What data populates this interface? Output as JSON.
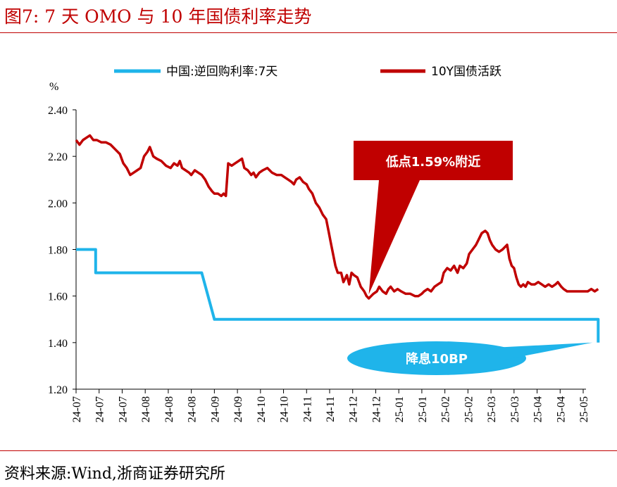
{
  "header": {
    "title": "图7:    7 天 OMO 与 10 年国债利率走势"
  },
  "footer": {
    "source": "资料来源:Wind,浙商证券研究所"
  },
  "colors": {
    "accent": "#c00000",
    "omo_series": "#1fb4ea",
    "bond_series": "#c00000",
    "low_callout": "#c00000",
    "cut_callout": "#1fb4ea"
  },
  "chart_data": {
    "type": "line",
    "y_unit_label": "%",
    "ylim": [
      1.2,
      2.4
    ],
    "y_ticks": [
      "2.40",
      "2.20",
      "2.00",
      "1.80",
      "1.60",
      "1.40",
      "1.20"
    ],
    "x_ticks": [
      "24-07",
      "24-07",
      "24-07",
      "24-08",
      "24-08",
      "24-08",
      "24-09",
      "24-09",
      "24-10",
      "24-10",
      "24-11",
      "24-11",
      "24-12",
      "24-12",
      "25-01",
      "25-01",
      "25-02",
      "25-02",
      "25-03",
      "25-03",
      "25-04",
      "25-04",
      "25-05"
    ],
    "legend_position": "top",
    "grid": false,
    "series": [
      {
        "name": "中国:逆回购利率:7天",
        "color": "#1fb4ea",
        "points": [
          [
            0,
            1.8
          ],
          [
            0.85,
            1.8
          ],
          [
            0.85,
            1.7
          ],
          [
            5.45,
            1.7
          ],
          [
            6.0,
            1.5
          ],
          [
            22.65,
            1.5
          ],
          [
            22.65,
            1.4
          ]
        ]
      },
      {
        "name": "10Y国债活跃",
        "color": "#c00000",
        "points": [
          [
            0,
            2.27
          ],
          [
            0.15,
            2.25
          ],
          [
            0.3,
            2.27
          ],
          [
            0.45,
            2.28
          ],
          [
            0.6,
            2.29
          ],
          [
            0.75,
            2.27
          ],
          [
            0.9,
            2.27
          ],
          [
            1.1,
            2.26
          ],
          [
            1.3,
            2.26
          ],
          [
            1.5,
            2.25
          ],
          [
            1.7,
            2.23
          ],
          [
            1.9,
            2.21
          ],
          [
            2.05,
            2.17
          ],
          [
            2.2,
            2.15
          ],
          [
            2.35,
            2.12
          ],
          [
            2.5,
            2.13
          ],
          [
            2.65,
            2.14
          ],
          [
            2.8,
            2.15
          ],
          [
            2.95,
            2.2
          ],
          [
            3.1,
            2.22
          ],
          [
            3.2,
            2.24
          ],
          [
            3.35,
            2.2
          ],
          [
            3.5,
            2.19
          ],
          [
            3.7,
            2.18
          ],
          [
            3.9,
            2.16
          ],
          [
            4.1,
            2.15
          ],
          [
            4.25,
            2.17
          ],
          [
            4.4,
            2.16
          ],
          [
            4.5,
            2.18
          ],
          [
            4.6,
            2.15
          ],
          [
            4.75,
            2.14
          ],
          [
            4.9,
            2.13
          ],
          [
            5.0,
            2.12
          ],
          [
            5.15,
            2.14
          ],
          [
            5.3,
            2.13
          ],
          [
            5.45,
            2.12
          ],
          [
            5.6,
            2.1
          ],
          [
            5.75,
            2.07
          ],
          [
            5.9,
            2.05
          ],
          [
            6.0,
            2.04
          ],
          [
            6.15,
            2.04
          ],
          [
            6.3,
            2.03
          ],
          [
            6.4,
            2.04
          ],
          [
            6.5,
            2.03
          ],
          [
            6.6,
            2.17
          ],
          [
            6.75,
            2.16
          ],
          [
            6.9,
            2.17
          ],
          [
            7.05,
            2.18
          ],
          [
            7.2,
            2.19
          ],
          [
            7.3,
            2.15
          ],
          [
            7.45,
            2.14
          ],
          [
            7.6,
            2.12
          ],
          [
            7.7,
            2.13
          ],
          [
            7.8,
            2.11
          ],
          [
            7.95,
            2.13
          ],
          [
            8.1,
            2.14
          ],
          [
            8.3,
            2.15
          ],
          [
            8.5,
            2.13
          ],
          [
            8.7,
            2.12
          ],
          [
            8.9,
            2.12
          ],
          [
            9.05,
            2.11
          ],
          [
            9.2,
            2.1
          ],
          [
            9.35,
            2.09
          ],
          [
            9.45,
            2.08
          ],
          [
            9.55,
            2.1
          ],
          [
            9.7,
            2.11
          ],
          [
            9.85,
            2.09
          ],
          [
            10.0,
            2.08
          ],
          [
            10.1,
            2.06
          ],
          [
            10.25,
            2.04
          ],
          [
            10.4,
            2.0
          ],
          [
            10.55,
            1.98
          ],
          [
            10.7,
            1.95
          ],
          [
            10.85,
            1.93
          ],
          [
            10.95,
            1.88
          ],
          [
            11.05,
            1.83
          ],
          [
            11.15,
            1.78
          ],
          [
            11.25,
            1.73
          ],
          [
            11.35,
            1.7
          ],
          [
            11.5,
            1.7
          ],
          [
            11.6,
            1.66
          ],
          [
            11.75,
            1.69
          ],
          [
            11.85,
            1.65
          ],
          [
            11.95,
            1.7
          ],
          [
            12.05,
            1.69
          ],
          [
            12.2,
            1.68
          ],
          [
            12.35,
            1.64
          ],
          [
            12.5,
            1.62
          ],
          [
            12.6,
            1.6
          ],
          [
            12.7,
            1.59
          ],
          [
            12.8,
            1.6
          ],
          [
            12.9,
            1.61
          ],
          [
            13.05,
            1.62
          ],
          [
            13.15,
            1.64
          ],
          [
            13.3,
            1.62
          ],
          [
            13.45,
            1.61
          ],
          [
            13.55,
            1.63
          ],
          [
            13.65,
            1.64
          ],
          [
            13.8,
            1.62
          ],
          [
            13.95,
            1.63
          ],
          [
            14.1,
            1.62
          ],
          [
            14.3,
            1.61
          ],
          [
            14.5,
            1.61
          ],
          [
            14.7,
            1.6
          ],
          [
            14.85,
            1.6
          ],
          [
            15.0,
            1.61
          ],
          [
            15.1,
            1.62
          ],
          [
            15.25,
            1.63
          ],
          [
            15.4,
            1.62
          ],
          [
            15.55,
            1.64
          ],
          [
            15.7,
            1.65
          ],
          [
            15.85,
            1.66
          ],
          [
            15.95,
            1.7
          ],
          [
            16.1,
            1.72
          ],
          [
            16.25,
            1.71
          ],
          [
            16.4,
            1.73
          ],
          [
            16.55,
            1.7
          ],
          [
            16.65,
            1.73
          ],
          [
            16.8,
            1.72
          ],
          [
            16.95,
            1.74
          ],
          [
            17.05,
            1.78
          ],
          [
            17.2,
            1.8
          ],
          [
            17.35,
            1.82
          ],
          [
            17.45,
            1.84
          ],
          [
            17.6,
            1.87
          ],
          [
            17.75,
            1.88
          ],
          [
            17.85,
            1.87
          ],
          [
            17.95,
            1.84
          ],
          [
            18.05,
            1.82
          ],
          [
            18.2,
            1.8
          ],
          [
            18.35,
            1.79
          ],
          [
            18.5,
            1.8
          ],
          [
            18.6,
            1.81
          ],
          [
            18.7,
            1.82
          ],
          [
            18.8,
            1.76
          ],
          [
            18.9,
            1.73
          ],
          [
            19.0,
            1.72
          ],
          [
            19.1,
            1.68
          ],
          [
            19.2,
            1.65
          ],
          [
            19.3,
            1.64
          ],
          [
            19.4,
            1.65
          ],
          [
            19.5,
            1.64
          ],
          [
            19.6,
            1.66
          ],
          [
            19.75,
            1.65
          ],
          [
            19.9,
            1.65
          ],
          [
            20.05,
            1.66
          ],
          [
            20.2,
            1.65
          ],
          [
            20.35,
            1.64
          ],
          [
            20.5,
            1.65
          ],
          [
            20.65,
            1.64
          ],
          [
            20.8,
            1.65
          ],
          [
            20.9,
            1.66
          ],
          [
            21.05,
            1.64
          ],
          [
            21.15,
            1.63
          ],
          [
            21.3,
            1.62
          ],
          [
            21.45,
            1.62
          ],
          [
            21.6,
            1.62
          ],
          [
            21.8,
            1.62
          ],
          [
            22.0,
            1.62
          ],
          [
            22.2,
            1.62
          ],
          [
            22.35,
            1.63
          ],
          [
            22.5,
            1.62
          ],
          [
            22.65,
            1.63
          ]
        ]
      }
    ],
    "annotations": [
      {
        "text": "低点1.59%附近",
        "color": "#c00000",
        "target": [
          12.7,
          1.59
        ]
      },
      {
        "text": "降息10BP",
        "color": "#1fb4ea",
        "target": [
          22.65,
          1.4
        ]
      }
    ]
  }
}
